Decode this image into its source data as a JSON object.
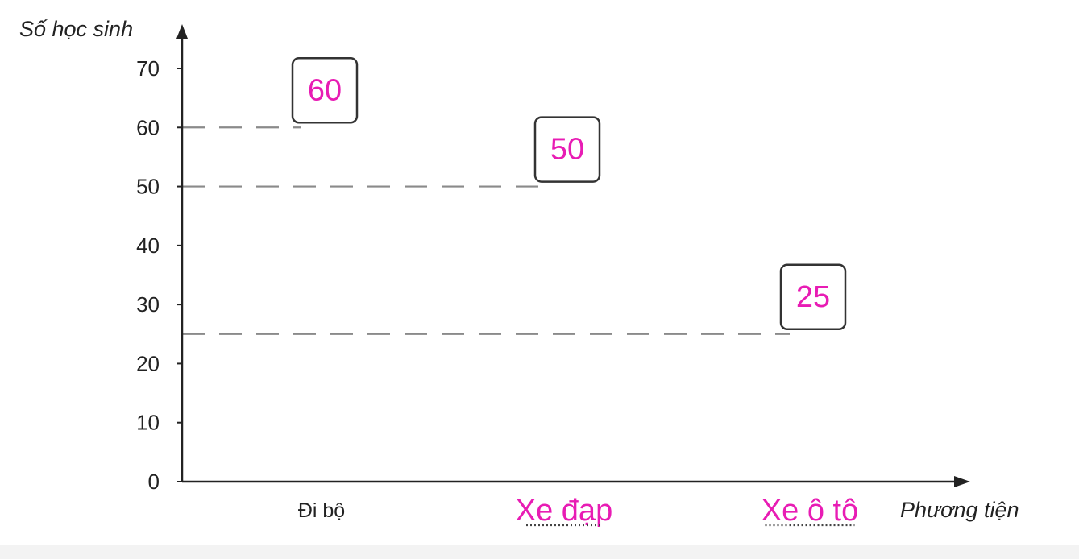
{
  "chart_data": {
    "type": "bar",
    "ylabel": "Số học sinh",
    "xlabel": "Phương tiện",
    "yticks": [
      "0",
      "10",
      "20",
      "30",
      "40",
      "50",
      "60",
      "70"
    ],
    "ylim": [
      0,
      70
    ],
    "categories": [
      "Đi bộ",
      "Xe đạp",
      "Xe ô tô"
    ],
    "values": [
      60,
      50,
      25
    ],
    "value_labels": [
      "60",
      "50",
      "25"
    ],
    "grid": false,
    "colors": {
      "axis": "#222222",
      "dash": "#8a8a8a",
      "handwriting": "#e81cb4",
      "box_border": "#333333"
    }
  }
}
